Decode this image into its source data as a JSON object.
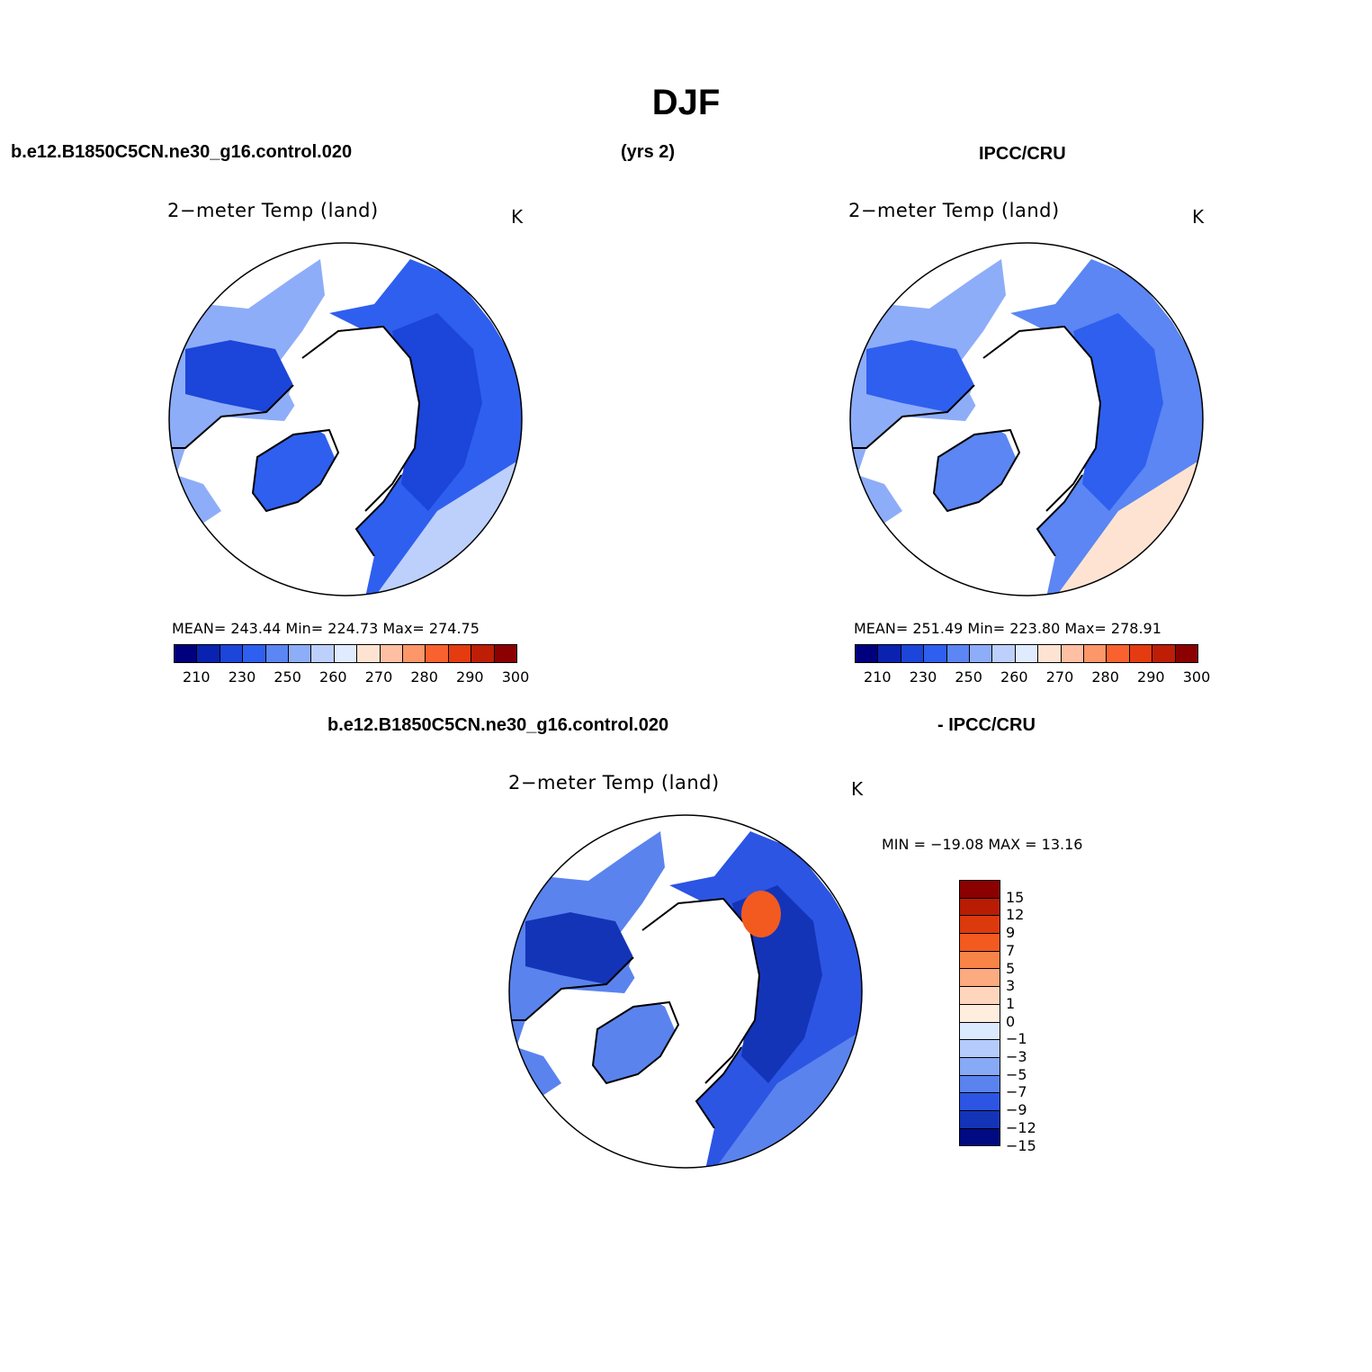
{
  "title": "DJF",
  "header": {
    "case_name": "b.e12.B1850C5CN.ne30_g16.control.020",
    "years": "(yrs 2)",
    "obs_name": "IPCC/CRU"
  },
  "panels": [
    {
      "title": "2−meter Temp (land)",
      "units": "K",
      "stats": "MEAN=  243.44    Min=  224.73    Max=  274.75",
      "colorbar_labels": [
        "210",
        "230",
        "250",
        "260",
        "270",
        "280",
        "290",
        "300"
      ]
    },
    {
      "title": "2−meter Temp (land)",
      "units": "K",
      "stats": "MEAN=  251.49    Min=  223.80    Max=  278.91",
      "colorbar_labels": [
        "210",
        "230",
        "250",
        "260",
        "270",
        "280",
        "290",
        "300"
      ]
    }
  ],
  "diff_header": {
    "left": "b.e12.B1850C5CN.ne30_g16.control.020",
    "right": "- IPCC/CRU"
  },
  "diff_panel": {
    "title": "2−meter Temp (land)",
    "units": "K",
    "minmax": "MIN = −19.08 MAX =   13.16",
    "colorbar_labels": [
      "15",
      "12",
      "9",
      "7",
      "5",
      "3",
      "1",
      "0",
      "−1",
      "−3",
      "−5",
      "−7",
      "−9",
      "−12",
      "−15"
    ]
  },
  "colors": {
    "abs_scale": [
      "#00007f",
      "#0a22b0",
      "#1c45d9",
      "#2f5fef",
      "#5b86f3",
      "#8eadf8",
      "#bcd0fb",
      "#e0ebff",
      "#ffe3d2",
      "#ffbfa2",
      "#fd9668",
      "#f9622e",
      "#e53b10",
      "#bd1e05",
      "#8b0000"
    ],
    "diff_scale": [
      "#8b0000",
      "#b81c05",
      "#dc3a0c",
      "#f25a20",
      "#f98448",
      "#fcaa80",
      "#ffd6bd",
      "#ffeede",
      "#dceaff",
      "#b4cbfb",
      "#88a9f5",
      "#5a83ee",
      "#2c55e3",
      "#1434b8",
      "#000a82"
    ]
  }
}
